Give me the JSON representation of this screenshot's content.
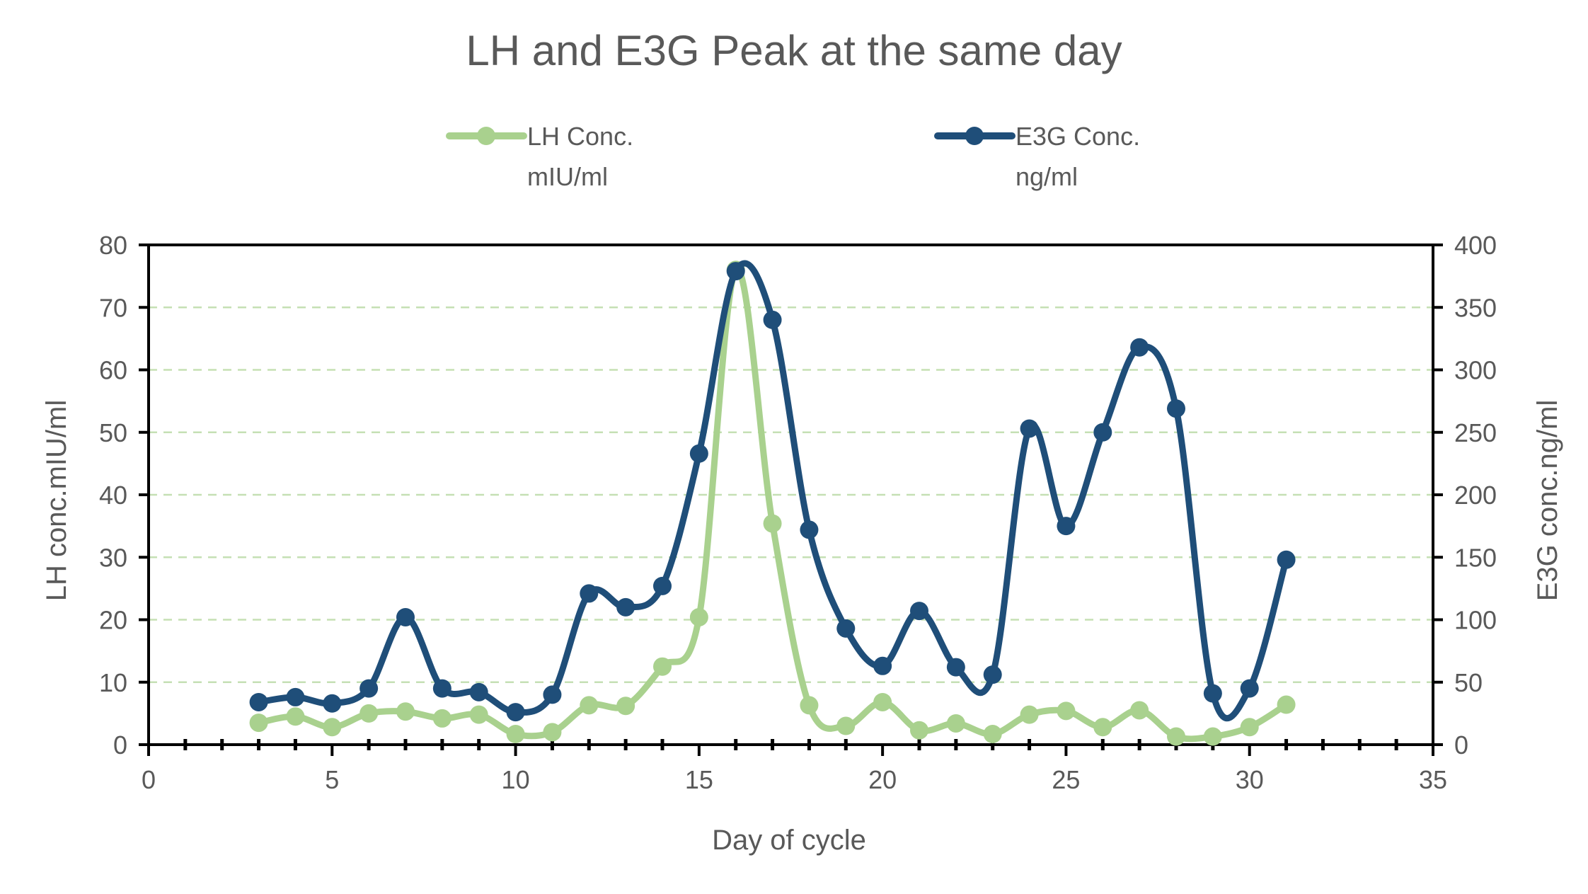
{
  "chart_data": {
    "type": "line",
    "title": "LH and E3G Peak at the same day",
    "xlabel": "Day of cycle",
    "ylabel_left": "LH conc.mIU/ml",
    "ylabel_right": "E3G conc.ng/ml",
    "xlim": [
      0,
      35
    ],
    "ylim_left": [
      0,
      80
    ],
    "ylim_right": [
      0,
      400
    ],
    "x_ticks": [
      0,
      5,
      10,
      15,
      20,
      25,
      30,
      35
    ],
    "y_ticks_left": [
      0,
      10,
      20,
      30,
      40,
      50,
      60,
      70,
      80
    ],
    "y_ticks_right": [
      0,
      50,
      100,
      150,
      200,
      250,
      300,
      350,
      400
    ],
    "grid": "horizontal dashed",
    "legend_position": "top",
    "colors": {
      "lh": "#a9d18e",
      "e3g": "#1f4e79",
      "grid": "#c5e0b4",
      "axis": "#000000"
    },
    "series": [
      {
        "name": "LH Conc.",
        "unit": "mIU/ml",
        "axis": "left",
        "x": [
          3,
          4,
          5,
          6,
          7,
          8,
          9,
          10,
          11,
          12,
          13,
          14,
          15,
          16,
          17,
          18,
          19,
          20,
          21,
          22,
          23,
          24,
          25,
          26,
          27,
          28,
          29,
          30,
          31
        ],
        "values": [
          3.5,
          4.5,
          2.8,
          5,
          5.3,
          4.2,
          4.8,
          1.7,
          2,
          6.3,
          6.2,
          12.5,
          20.4,
          76,
          35.4,
          6.3,
          3,
          6.8,
          2.3,
          3.4,
          1.7,
          4.8,
          5.4,
          2.8,
          5.5,
          1.3,
          1.3,
          2.8,
          6.4
        ]
      },
      {
        "name": "E3G Conc.",
        "unit": "ng/ml",
        "axis": "right",
        "x": [
          3,
          4,
          5,
          6,
          7,
          8,
          9,
          10,
          11,
          12,
          13,
          14,
          15,
          16,
          17,
          18,
          19,
          20,
          21,
          22,
          23,
          24,
          25,
          26,
          27,
          28,
          29,
          30,
          31
        ],
        "values": [
          34,
          38,
          33,
          45,
          102,
          45,
          42,
          26,
          40,
          121,
          110,
          127,
          233,
          379,
          340,
          172,
          93,
          63,
          107,
          62,
          56,
          253,
          175,
          250,
          318,
          269,
          41,
          45,
          148
        ]
      }
    ]
  }
}
